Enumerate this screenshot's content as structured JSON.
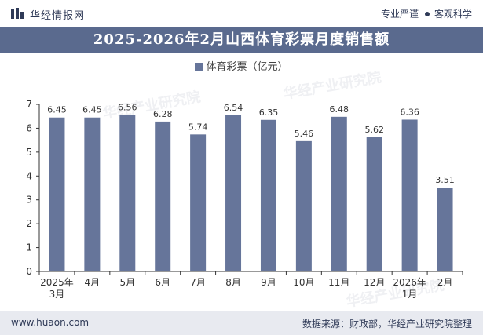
{
  "header": {
    "brand": "华经情报网",
    "tagline_left": "专业严谨",
    "tagline_right": "客观科学"
  },
  "footer": {
    "url": "www.huaon.com",
    "source": "数据来源：财政部，华经产业研究院整理"
  },
  "watermark": "华经产业研究院",
  "colors": {
    "bar": "#66759a",
    "title_bg": "#5a6a8e",
    "footer_bg": "#e8eaf0"
  },
  "chart_data": {
    "type": "bar",
    "title": "2025-2026年2月山西体育彩票月度销售额",
    "categories": [
      [
        "2025年",
        "3月"
      ],
      [
        "4月"
      ],
      [
        "5月"
      ],
      [
        "6月"
      ],
      [
        "7月"
      ],
      [
        "8月"
      ],
      [
        "9月"
      ],
      [
        "10月"
      ],
      [
        "11月"
      ],
      [
        "12月"
      ],
      [
        "2026年",
        "1月"
      ],
      [
        "2月"
      ]
    ],
    "series": [
      {
        "name": "体育彩票（亿元）",
        "values": [
          6.45,
          6.45,
          6.56,
          6.28,
          5.74,
          6.54,
          6.35,
          5.46,
          6.48,
          5.62,
          6.36,
          3.51
        ]
      }
    ],
    "ylim": [
      0,
      7
    ],
    "yticks": [
      0,
      1,
      2,
      3,
      4,
      5,
      6,
      7
    ],
    "legend": "top-center",
    "grid": false
  }
}
